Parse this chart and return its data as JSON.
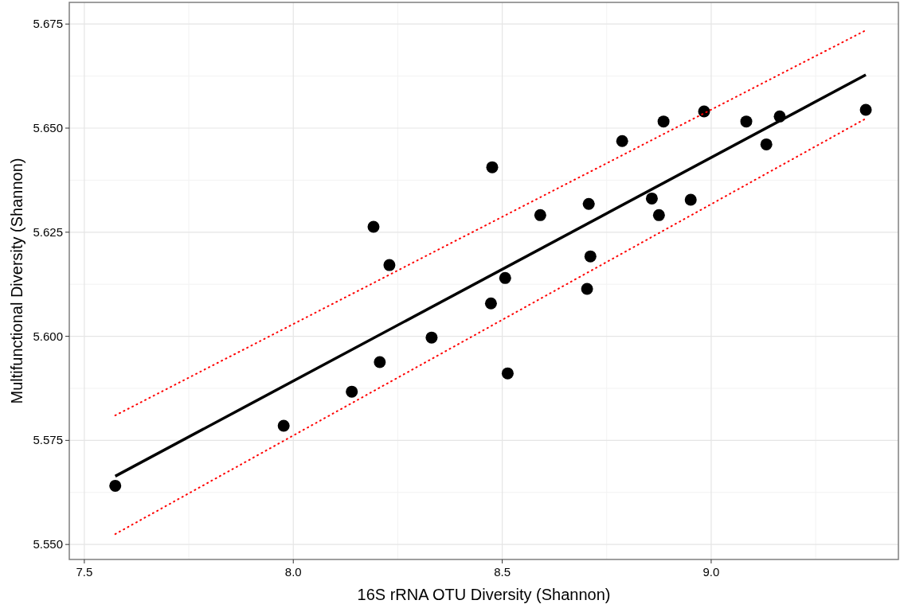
{
  "chart_data": {
    "type": "scatter",
    "xlabel": "16S rRNA OTU Diversity (Shannon)",
    "ylabel": "Multifunctional Diversity (Shannon)",
    "xlim": [
      7.464,
      9.448
    ],
    "ylim": [
      5.5464,
      5.6802
    ],
    "xticks": [
      {
        "value": 7.5,
        "label": "7.5"
      },
      {
        "value": 8,
        "label": "8.0"
      },
      {
        "value": 8.5,
        "label": "8.5"
      },
      {
        "value": 9,
        "label": "9.0"
      }
    ],
    "yticks": [
      {
        "value": 5.55,
        "label": "5.550"
      },
      {
        "value": 5.575,
        "label": "5.575"
      },
      {
        "value": 5.6,
        "label": "5.600"
      },
      {
        "value": 5.625,
        "label": "5.625"
      },
      {
        "value": 5.65,
        "label": "5.650"
      },
      {
        "value": 5.675,
        "label": "5.675"
      }
    ],
    "grid": true,
    "series": [
      {
        "marker": "circle",
        "color": "#000000",
        "x": [
          7.574,
          7.977,
          8.14,
          8.207,
          8.192,
          8.23,
          8.331,
          8.476,
          8.473,
          8.507,
          8.513,
          8.591,
          8.707,
          8.711,
          8.703,
          8.787,
          8.858,
          8.886,
          8.875,
          8.951,
          8.983,
          9.084,
          9.132,
          9.164,
          9.37
        ],
        "values": [
          5.5641,
          5.5785,
          5.5867,
          5.5938,
          5.6263,
          5.6171,
          5.5997,
          5.6406,
          5.6079,
          5.614,
          5.5911,
          5.6291,
          5.6318,
          5.6192,
          5.6114,
          5.6469,
          5.6331,
          5.6516,
          5.6291,
          5.6328,
          5.654,
          5.6516,
          5.6461,
          5.6528,
          5.6544
        ]
      },
      {
        "type": "line",
        "marker": "none",
        "color": "#000000",
        "line_style": "solid",
        "x": [
          7.574,
          9.37
        ],
        "values": [
          5.5664,
          5.6628
        ]
      },
      {
        "type": "line",
        "marker": "none",
        "color": "#ff0000",
        "line_style": "dotted",
        "x": [
          7.574,
          9.37
        ],
        "values": [
          5.581,
          5.6735
        ]
      },
      {
        "type": "line",
        "marker": "none",
        "color": "#ff0000",
        "line_style": "dotted",
        "x": [
          7.574,
          9.37
        ],
        "values": [
          5.5525,
          5.6523
        ]
      }
    ]
  }
}
